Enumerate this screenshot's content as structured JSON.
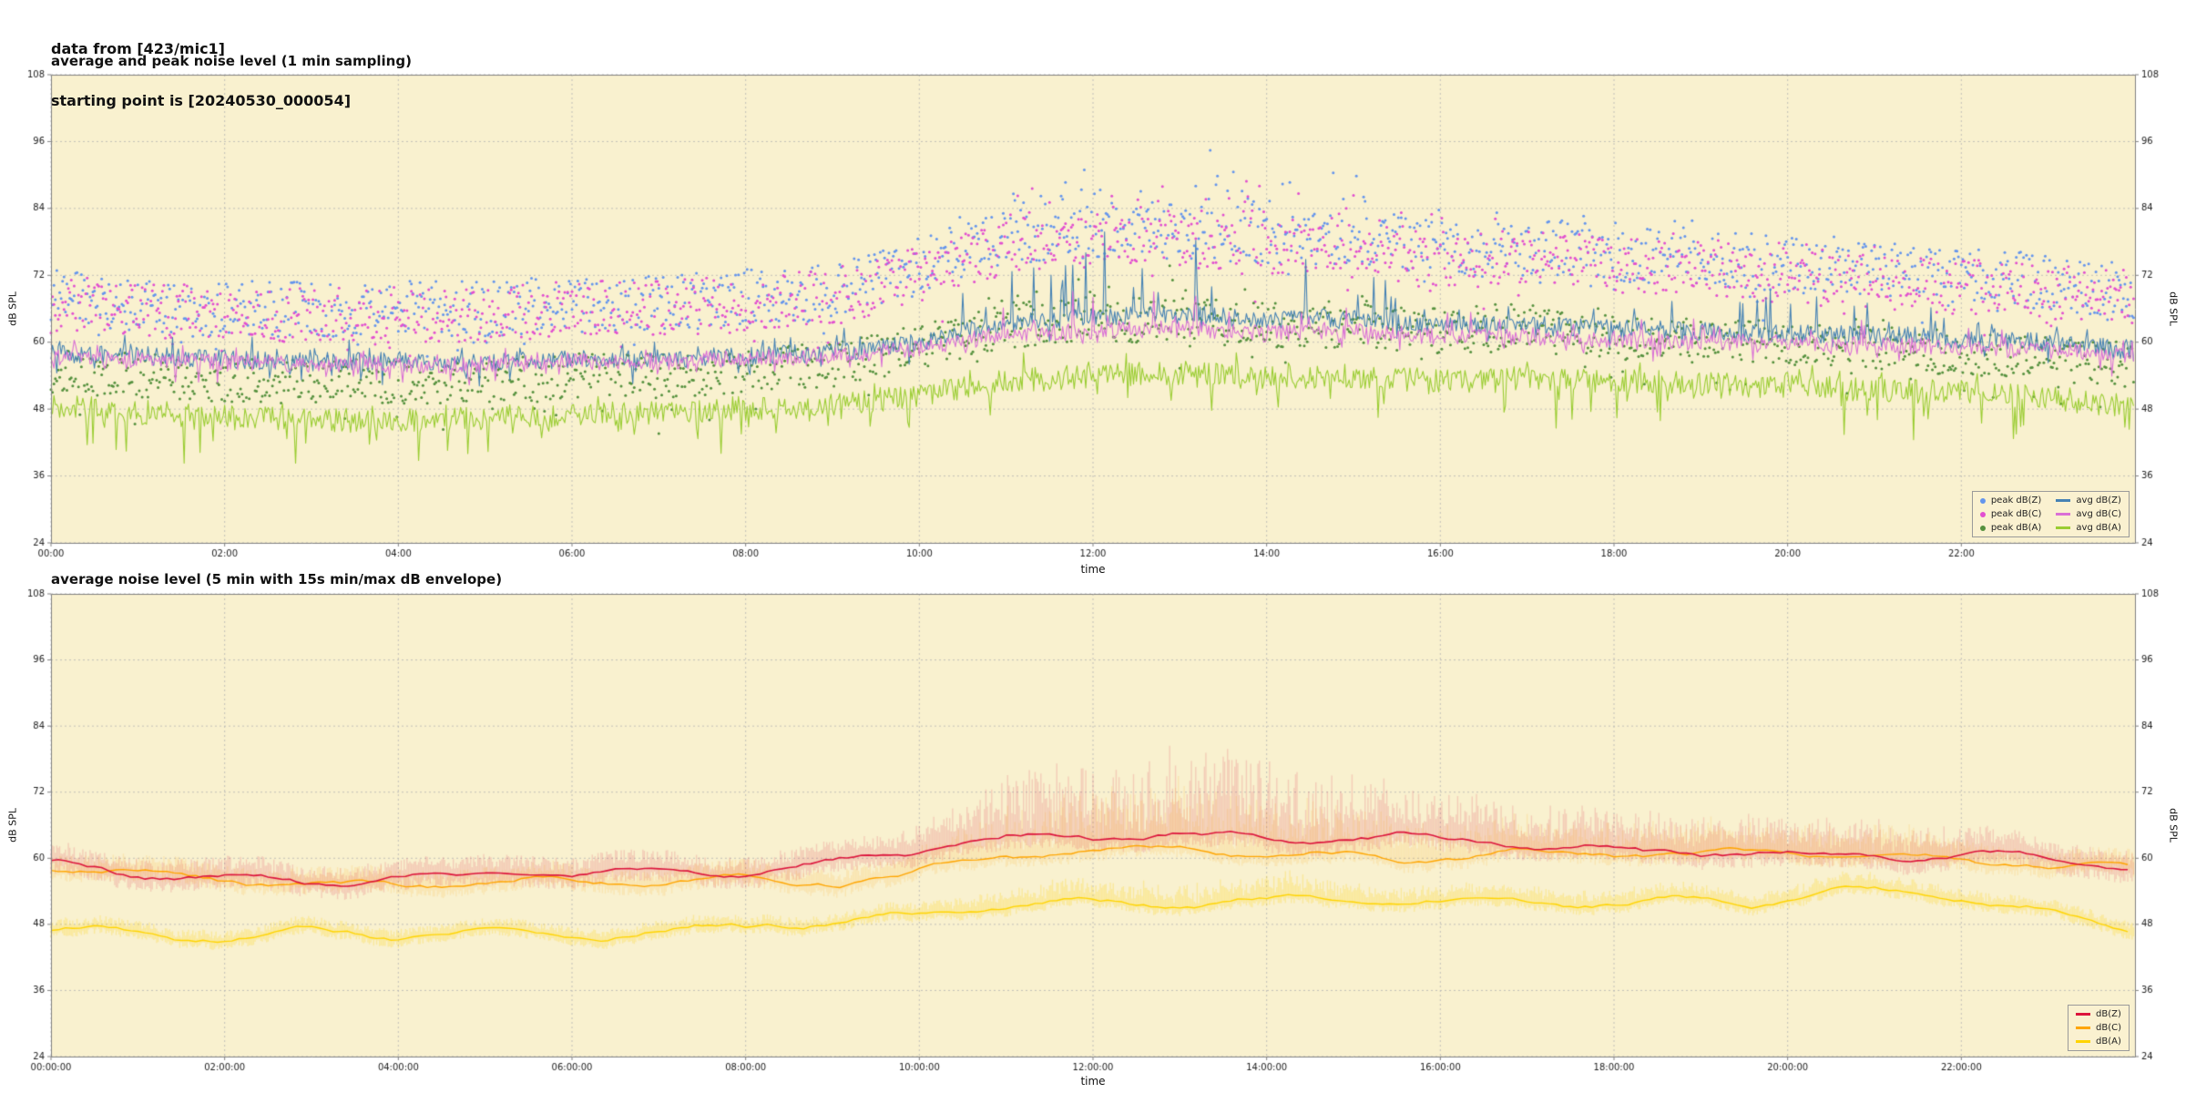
{
  "header": {
    "line1": "data from [423/mic1]",
    "line2": "starting point is [20240530_000054]"
  },
  "colors": {
    "background": "#f9f1cf",
    "grid": "#b3b3b3",
    "axis": "#808080",
    "text": "#222222"
  },
  "chart_data": [
    {
      "type": "line+scatter",
      "title": "average and peak noise level (1 min sampling)",
      "xlabel": "time",
      "ylabel": "dB SPL",
      "ylabel_right": "dB SPL",
      "ylim": [
        24,
        108
      ],
      "yticks": [
        24,
        36,
        48,
        60,
        72,
        84,
        96,
        108
      ],
      "x_range_minutes": [
        0,
        1440
      ],
      "xtick_minutes": [
        0,
        120,
        240,
        360,
        480,
        600,
        720,
        840,
        960,
        1080,
        1200,
        1320
      ],
      "xtick_labels": [
        "00:00",
        "02:00",
        "04:00",
        "06:00",
        "08:00",
        "10:00",
        "12:00",
        "14:00",
        "16:00",
        "18:00",
        "20:00",
        "22:00"
      ],
      "grid": true,
      "legend_position": "lower right",
      "sampling": "1 min",
      "series": [
        {
          "name": "peak dB(Z)",
          "style": "scatter",
          "color": "#6495ED",
          "marker": "dot",
          "spread": 5,
          "day_extra": 9,
          "hourly_values": [
            68,
            67,
            66,
            66,
            66,
            66,
            67,
            67,
            68,
            69,
            74,
            79,
            80,
            80,
            79,
            79,
            77,
            77,
            76,
            75,
            74,
            73,
            72,
            71,
            69
          ]
        },
        {
          "name": "peak dB(C)",
          "style": "scatter",
          "color": "#E24FD0",
          "marker": "dot",
          "spread": 5,
          "day_extra": 8,
          "hourly_values": [
            67,
            66,
            65,
            65,
            65,
            65,
            66,
            66,
            67,
            68,
            72,
            77,
            78,
            78,
            77,
            77,
            75,
            75,
            74,
            73,
            72,
            71,
            70,
            69,
            68
          ]
        },
        {
          "name": "peak dB(A)",
          "style": "scatter",
          "color": "#55913E",
          "marker": "dot",
          "spread": 4,
          "day_extra": 5,
          "hourly_values": [
            55,
            54,
            53,
            53,
            53,
            53,
            54,
            54,
            55,
            56,
            59,
            63,
            64,
            64,
            63,
            63,
            62,
            62,
            61,
            60,
            60,
            59,
            58,
            57,
            56
          ]
        },
        {
          "name": "avg dB(Z)",
          "style": "line",
          "color": "#4682B4",
          "marker": "line",
          "noise": 1.7,
          "spike_up": 11,
          "spike_down": 3,
          "hourly_values": [
            58,
            57.5,
            57,
            56.5,
            56.5,
            56.5,
            57,
            57,
            57.5,
            58,
            60,
            63.5,
            64.5,
            65,
            64,
            64.5,
            63,
            63,
            62.5,
            62,
            61.5,
            61.5,
            60.5,
            60,
            58.5
          ]
        },
        {
          "name": "avg dB(C)",
          "style": "line",
          "color": "#DA70D6",
          "marker": "line",
          "noise": 1.5,
          "spike_up": 6,
          "spike_down": 3,
          "hourly_values": [
            57.5,
            57,
            56.5,
            56,
            56,
            56,
            56.5,
            56.5,
            57,
            57.5,
            59,
            61.5,
            62,
            62.5,
            61.5,
            62,
            61,
            61,
            60.5,
            60,
            60,
            59.5,
            59,
            58.5,
            57.5
          ]
        },
        {
          "name": "avg dB(A)",
          "style": "line",
          "color": "#9ACD32",
          "marker": "line",
          "noise": 2.2,
          "spike_up": 4,
          "spike_down": 7,
          "hourly_values": [
            48.5,
            47.5,
            46.5,
            46,
            46,
            46.5,
            47,
            47.5,
            48,
            48.5,
            50.5,
            53,
            54,
            54.5,
            53.5,
            54,
            53,
            53.5,
            53,
            52.5,
            52,
            51.5,
            51,
            50,
            48.5
          ]
        }
      ]
    },
    {
      "type": "line+envelope",
      "title": "average noise level (5 min with 15s min/max dB envelope)",
      "xlabel": "time",
      "ylabel": "dB SPL",
      "ylabel_right": "dB SPL",
      "ylim": [
        24,
        108
      ],
      "yticks": [
        24,
        36,
        48,
        60,
        72,
        84,
        96,
        108
      ],
      "x_range_minutes": [
        0,
        1440
      ],
      "xtick_minutes": [
        0,
        120,
        240,
        360,
        480,
        600,
        720,
        840,
        960,
        1080,
        1200,
        1320
      ],
      "xtick_labels": [
        "00:00:00",
        "02:00:00",
        "04:00:00",
        "06:00:00",
        "08:00:00",
        "10:00:00",
        "12:00:00",
        "14:00:00",
        "16:00:00",
        "18:00:00",
        "20:00:00",
        "22:00:00"
      ],
      "grid": true,
      "legend_position": "lower right",
      "sampling": "5 min, 15 s min/max envelope",
      "series": [
        {
          "name": "dB(Z)",
          "color": "#DC143C",
          "line_width": 1.6,
          "wiggle": 1.2,
          "envelope": {
            "up_night": 3.5,
            "up_day": 13,
            "down": 2.5,
            "alpha": 0.16
          },
          "hourly_values": [
            59,
            58,
            57.5,
            56.5,
            55.5,
            55.5,
            56,
            56.5,
            57.5,
            58,
            60,
            62.5,
            63.5,
            64,
            63,
            63.5,
            62.5,
            62.5,
            62,
            61.5,
            61.5,
            61,
            60.5,
            59,
            57.5
          ]
        },
        {
          "name": "dB(C)",
          "color": "#FFA500",
          "line_width": 1.4,
          "wiggle": 1.1,
          "envelope": {
            "up_night": 3,
            "up_day": 10,
            "down": 2,
            "alpha": 0.14
          },
          "hourly_values": [
            58,
            57,
            56.5,
            55.5,
            54.5,
            54.5,
            55,
            55.5,
            56.5,
            57,
            59,
            61,
            62,
            62.5,
            61.5,
            62,
            61,
            61,
            60.5,
            60,
            60,
            59.5,
            59,
            57.5,
            56.5
          ]
        },
        {
          "name": "dB(A)",
          "color": "#FFD400",
          "line_width": 1.4,
          "wiggle": 1.7,
          "envelope": {
            "up_night": 2,
            "up_day": 3,
            "down": 1.5,
            "alpha": 0.25
          },
          "hourly_values": [
            47.5,
            46.5,
            46,
            45,
            44.5,
            45,
            45.5,
            46.5,
            47.5,
            48,
            50,
            52.5,
            53.5,
            54,
            53,
            53.5,
            52.5,
            53.5,
            53,
            52.5,
            52.5,
            52,
            51.5,
            50,
            48
          ]
        }
      ]
    }
  ]
}
